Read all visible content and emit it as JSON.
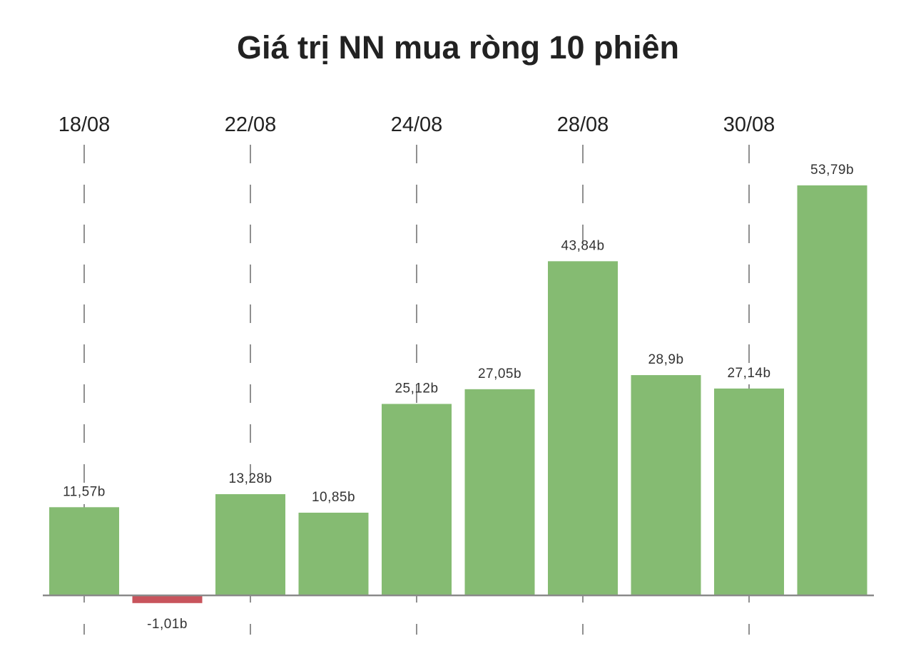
{
  "chart_data": {
    "type": "bar",
    "title": "Giá trị NN mua ròng 10 phiên",
    "xlabel": "",
    "ylabel": "",
    "values": [
      11.57,
      -1.01,
      13.28,
      10.85,
      25.12,
      27.05,
      43.84,
      28.9,
      27.14,
      53.79
    ],
    "value_labels": [
      "11,57b",
      "-1,01b",
      "13,28b",
      "10,85b",
      "25,12b",
      "27,05b",
      "43,84b",
      "28,9b",
      "27,14b",
      "53,79b"
    ],
    "x_ticks": [
      {
        "bar_index": 0,
        "label": "18/08"
      },
      {
        "bar_index": 2,
        "label": "22/08"
      },
      {
        "bar_index": 4,
        "label": "24/08"
      },
      {
        "bar_index": 6,
        "label": "28/08"
      },
      {
        "bar_index": 8,
        "label": "30/08"
      }
    ],
    "ylim": [
      -1.01,
      53.79
    ],
    "grid": "vertical dashed at labeled ticks",
    "colors": {
      "positive": "#85bb72",
      "negative": "#c8545c",
      "baseline": "#8a8a8a",
      "grid": "#555555"
    }
  }
}
